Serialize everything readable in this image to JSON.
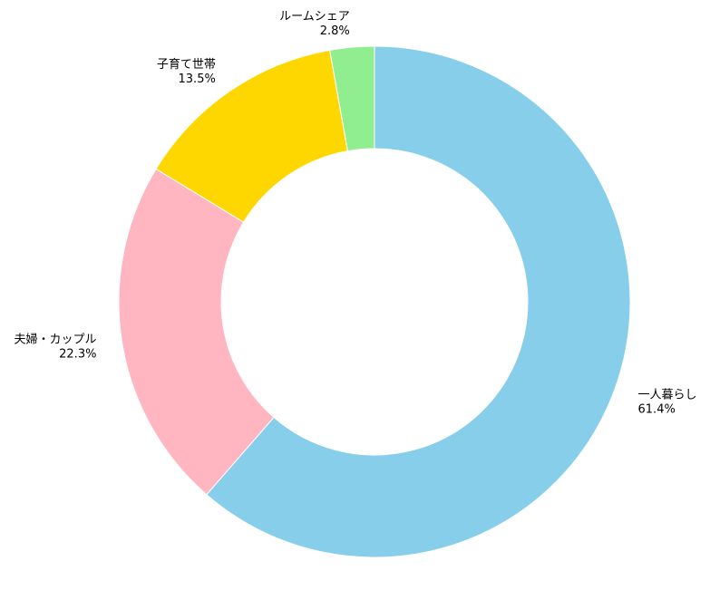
{
  "chart_data": {
    "type": "donut",
    "categories": [
      "一人暮らし",
      "夫婦・カップル",
      "子育て世帯",
      "ルームシェア"
    ],
    "values": [
      61.4,
      22.3,
      13.5,
      2.8
    ],
    "value_labels": [
      "61.4%",
      "22.3%",
      "13.5%",
      "2.8%"
    ],
    "colors": [
      "#87ceeb",
      "#ffb6c1",
      "#ffd700",
      "#90ee90"
    ]
  }
}
